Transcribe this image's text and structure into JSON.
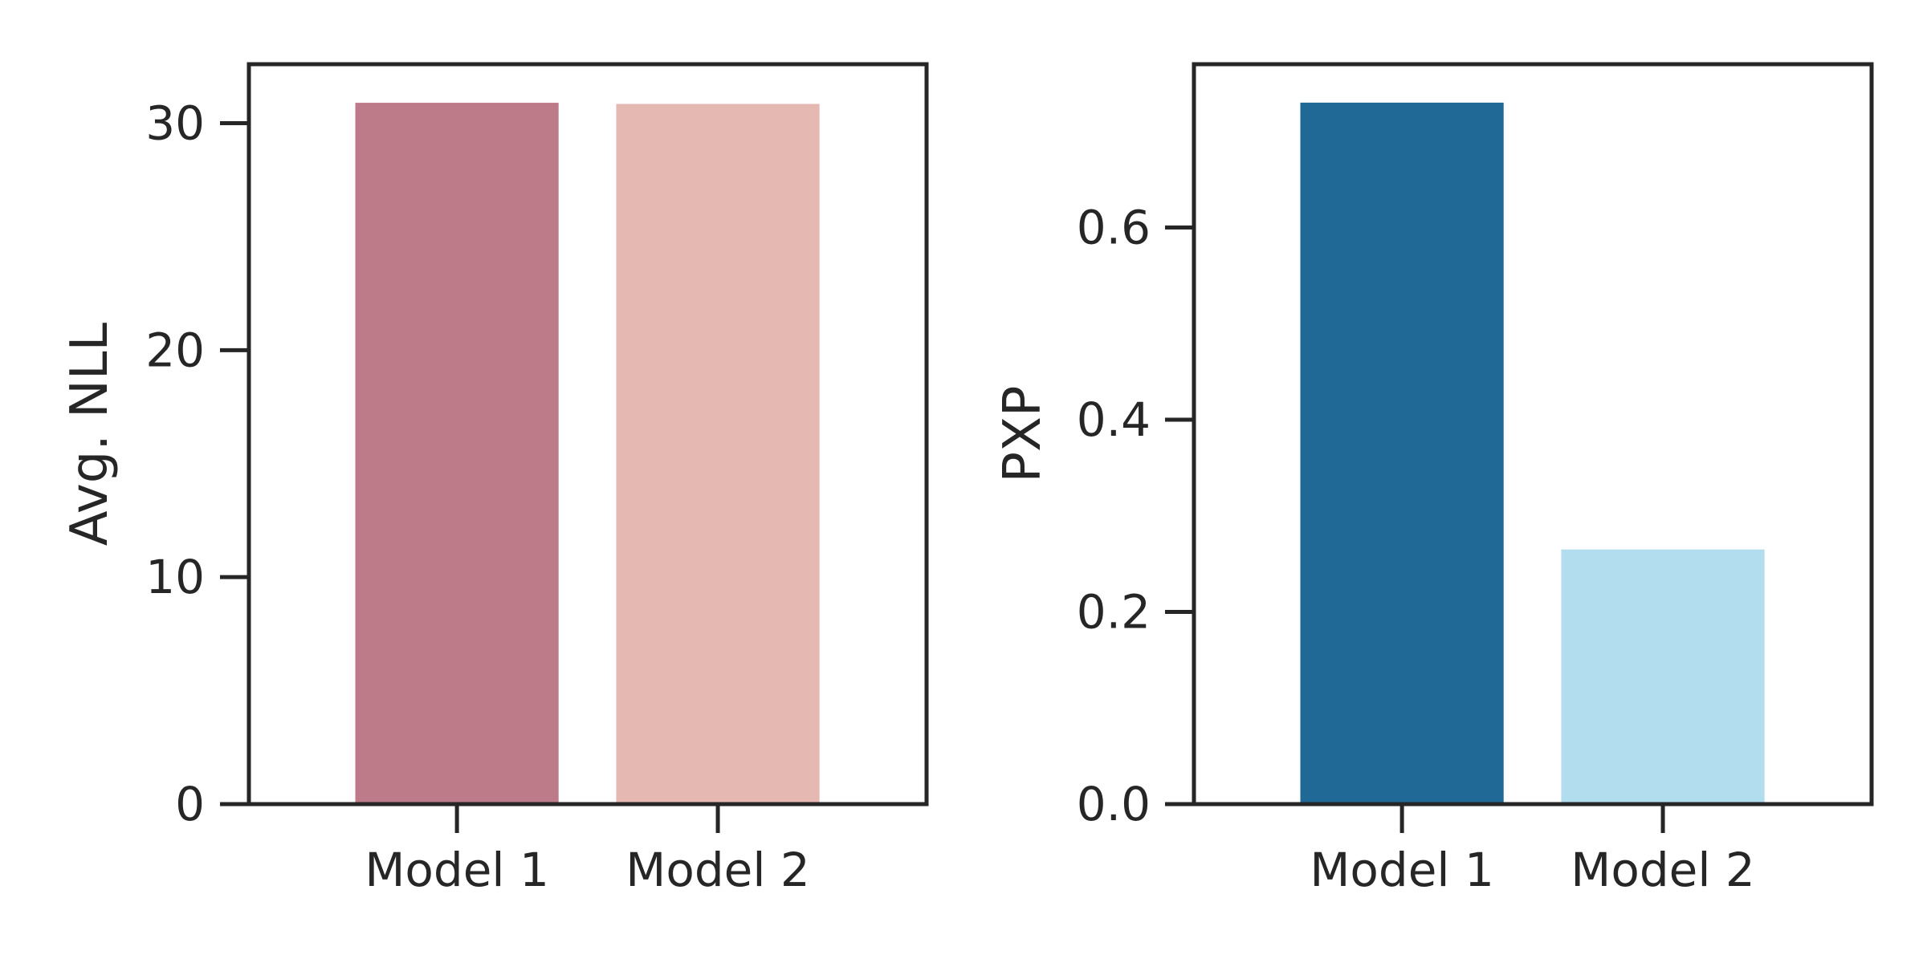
{
  "chart_data": [
    {
      "type": "bar",
      "categories": [
        "Model 1",
        "Model 2"
      ],
      "values": [
        30.9,
        30.85
      ],
      "colors": [
        "#bd7a89",
        "#e5b8b2"
      ],
      "title": "",
      "xlabel": "",
      "ylabel": "Avg. NLL",
      "ylim": [
        0,
        32.6
      ],
      "yticks": [
        0,
        10,
        20,
        30
      ],
      "ytick_labels": [
        "0",
        "10",
        "20",
        "30"
      ],
      "grid": false
    },
    {
      "type": "bar",
      "categories": [
        "Model 1",
        "Model 2"
      ],
      "values": [
        0.73,
        0.265
      ],
      "colors": [
        "#206895",
        "#b1ddef"
      ],
      "title": "",
      "xlabel": "",
      "ylabel": "PXP",
      "ylim": [
        0,
        0.77
      ],
      "yticks": [
        0.0,
        0.2,
        0.4,
        0.6
      ],
      "ytick_labels": [
        "0.0",
        "0.2",
        "0.4",
        "0.6"
      ],
      "grid": false
    }
  ]
}
